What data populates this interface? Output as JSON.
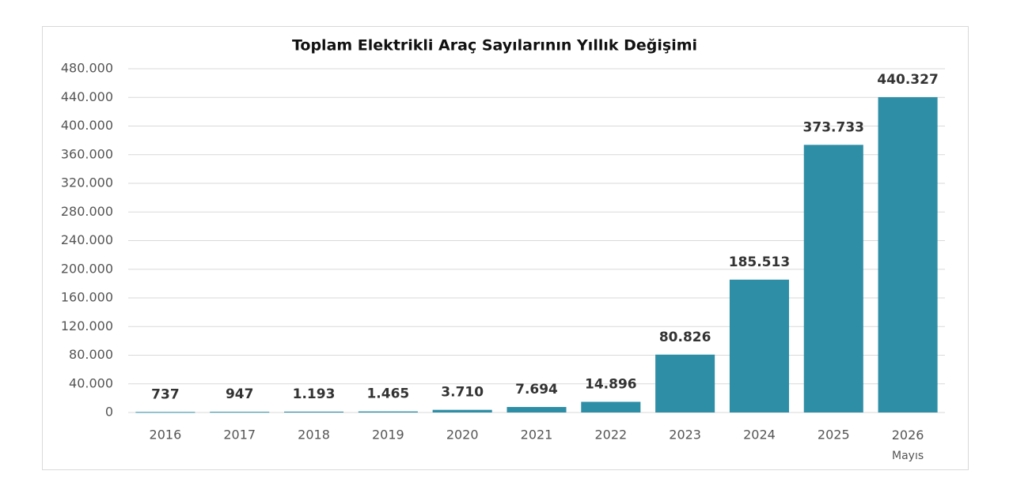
{
  "chart_data": {
    "type": "bar",
    "title": "Toplam Elektrikli Araç Sayılarının Yıllık Değişimi",
    "categories": [
      "2016",
      "2017",
      "2018",
      "2019",
      "2020",
      "2021",
      "2022",
      "2023",
      "2024",
      "2025",
      "2026\nMayıs"
    ],
    "values": [
      737,
      947,
      1193,
      1465,
      3710,
      7694,
      14896,
      80826,
      185513,
      373733,
      440327
    ],
    "value_labels": [
      "737",
      "947",
      "1.193",
      "1.465",
      "3.710",
      "7.694",
      "14.896",
      "80.826",
      "185.513",
      "373.733",
      "440.327"
    ],
    "color": "#2e8ea6",
    "ylim": [
      0,
      480000
    ],
    "yticks": [
      0,
      {
        "value": 40000,
        "label": "40.000"
      },
      {
        "value": 80000,
        "label": "80.000"
      },
      {
        "value": 120000,
        "label": "120.000"
      },
      {
        "value": 160000,
        "label": "160.000"
      },
      {
        "value": 200000,
        "label": "200.000"
      },
      {
        "value": 240000,
        "label": "240.000"
      },
      {
        "value": 280000,
        "label": "280.000"
      },
      {
        "value": 320000,
        "label": "320.000"
      },
      {
        "value": 360000,
        "label": "360.000"
      },
      {
        "value": 400000,
        "label": "400.000"
      },
      {
        "value": 440000,
        "label": "440.000"
      },
      {
        "value": 480000,
        "label": "480.000"
      }
    ],
    "grid": true
  }
}
